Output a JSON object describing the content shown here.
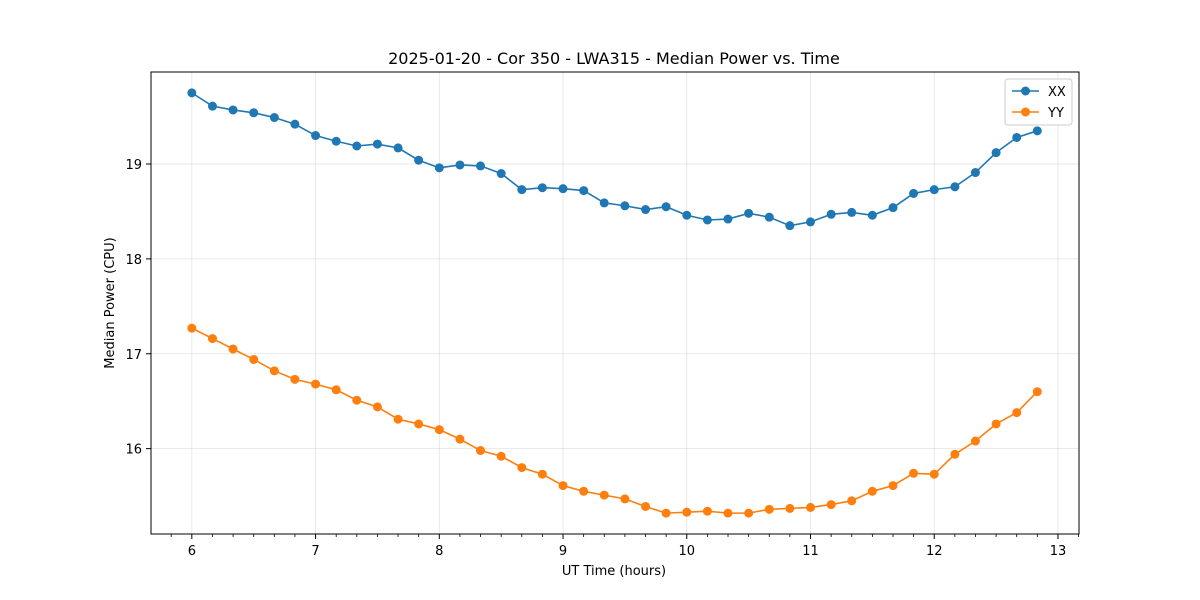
{
  "chart_data": {
    "type": "line",
    "title": "2025-01-20 - Cor 350 - LWA315 - Median Power vs. Time",
    "xlabel": "UT Time (hours)",
    "ylabel": "Median Power (CPU)",
    "xlim": [
      5.67,
      13.17
    ],
    "ylim": [
      15.1,
      19.97
    ],
    "x_ticks": [
      6,
      7,
      8,
      9,
      10,
      11,
      12,
      13
    ],
    "y_ticks": [
      16,
      17,
      18,
      19
    ],
    "grid": true,
    "legend_position": "top-right",
    "x": [
      6.0,
      6.167,
      6.333,
      6.5,
      6.667,
      6.833,
      7.0,
      7.167,
      7.333,
      7.5,
      7.667,
      7.833,
      8.0,
      8.167,
      8.333,
      8.5,
      8.667,
      8.833,
      9.0,
      9.167,
      9.333,
      9.5,
      9.667,
      9.833,
      10.0,
      10.167,
      10.333,
      10.5,
      10.667,
      10.833,
      11.0,
      11.167,
      11.333,
      11.5,
      11.667,
      11.833,
      12.0,
      12.167,
      12.333,
      12.5,
      12.667,
      12.833
    ],
    "series": [
      {
        "name": "XX",
        "color": "#1f77b4",
        "values": [
          19.75,
          19.61,
          19.57,
          19.54,
          19.49,
          19.42,
          19.3,
          19.24,
          19.19,
          19.21,
          19.17,
          19.04,
          18.96,
          18.99,
          18.98,
          18.9,
          18.73,
          18.75,
          18.74,
          18.72,
          18.59,
          18.56,
          18.52,
          18.55,
          18.46,
          18.41,
          18.42,
          18.48,
          18.44,
          18.35,
          18.39,
          18.47,
          18.49,
          18.46,
          18.54,
          18.69,
          18.73,
          18.76,
          18.91,
          19.12,
          19.28,
          19.35
        ]
      },
      {
        "name": "YY",
        "color": "#ff7f0e",
        "values": [
          17.27,
          17.16,
          17.05,
          16.94,
          16.82,
          16.73,
          16.68,
          16.62,
          16.51,
          16.44,
          16.31,
          16.26,
          16.2,
          16.1,
          15.98,
          15.92,
          15.8,
          15.73,
          15.61,
          15.55,
          15.51,
          15.47,
          15.39,
          15.32,
          15.33,
          15.34,
          15.32,
          15.32,
          15.36,
          15.37,
          15.38,
          15.41,
          15.45,
          15.55,
          15.61,
          15.74,
          15.73,
          15.94,
          16.08,
          16.26,
          16.38,
          16.6
        ]
      }
    ]
  }
}
